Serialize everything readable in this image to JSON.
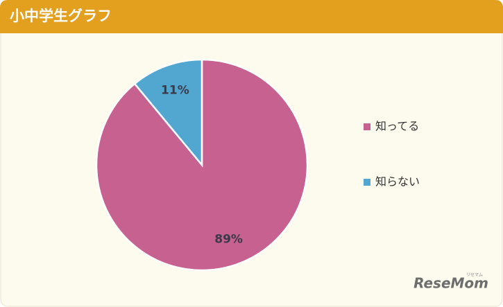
{
  "chart_data": {
    "type": "pie",
    "title": "小中学生グラフ",
    "categories": [
      "知ってる",
      "知らない"
    ],
    "values": [
      89,
      11
    ],
    "value_labels": [
      "89%",
      "11%"
    ],
    "colors": [
      "#c66190",
      "#52a7d0"
    ],
    "legend": "right",
    "watermark": "ReseMom",
    "watermark_ruby": "リセマム"
  }
}
